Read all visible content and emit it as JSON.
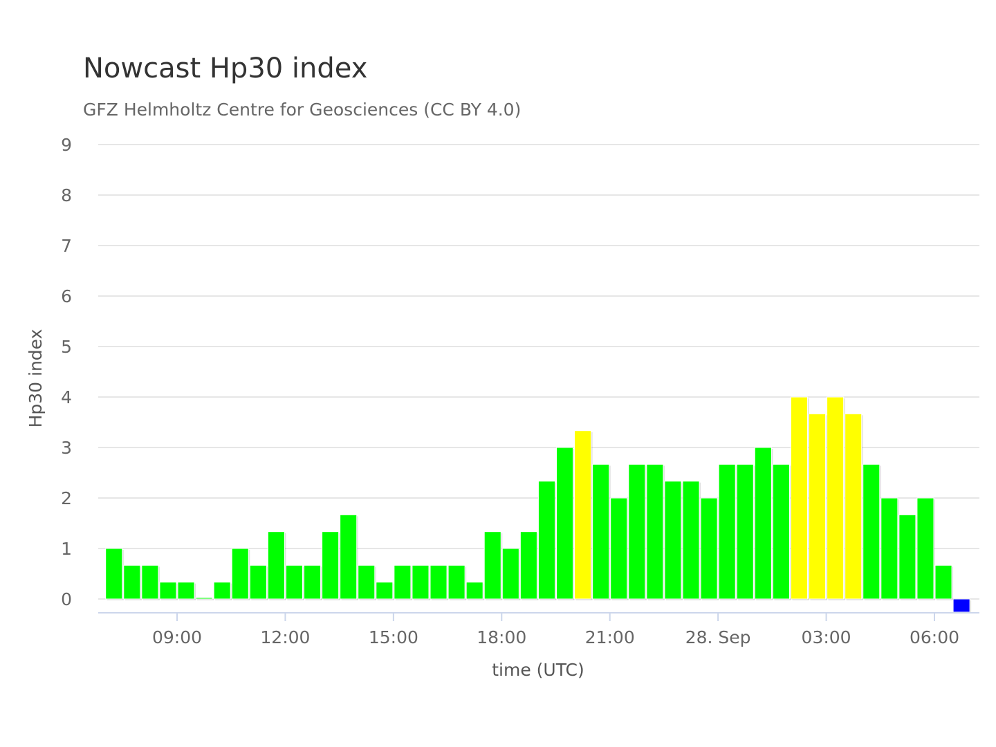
{
  "chart_data": {
    "type": "bar",
    "title": "Nowcast Hp30 index",
    "subtitle": "GFZ Helmholtz Centre for Geosciences (CC BY 4.0)",
    "xlabel": "time (UTC)",
    "ylabel": "Hp30 index",
    "ylim": [
      0,
      9
    ],
    "y_ticks": [
      0,
      1,
      2,
      3,
      4,
      5,
      6,
      7,
      8,
      9
    ],
    "x_ticks": [
      {
        "label": "09:00",
        "hour": 9
      },
      {
        "label": "12:00",
        "hour": 12
      },
      {
        "label": "15:00",
        "hour": 15
      },
      {
        "label": "18:00",
        "hour": 18
      },
      {
        "label": "21:00",
        "hour": 21
      },
      {
        "label": "28. Sep",
        "hour": 24
      },
      {
        "label": "03:00",
        "hour": 27
      },
      {
        "label": "06:00",
        "hour": 30
      }
    ],
    "x_start_hour": 7.0,
    "bar_interval_hours": 0.5,
    "grid": true,
    "legend": "none",
    "colors": {
      "quiet": "#00ff00",
      "active": "#ffff00",
      "nowcast": "#0000ff"
    },
    "values": [
      1,
      0.667,
      0.667,
      0.333,
      0.333,
      0,
      0.333,
      1,
      0.667,
      1.333,
      0.667,
      0.667,
      1.333,
      1.667,
      0.667,
      0.333,
      0.667,
      0.667,
      0.667,
      0.667,
      0.333,
      1.333,
      1,
      1.333,
      2.333,
      3,
      3.333,
      2.667,
      2,
      2.667,
      2.667,
      2.333,
      2.333,
      2,
      2.667,
      2.667,
      3,
      2.667,
      4,
      3.667,
      4,
      3.667,
      2.667,
      2,
      1.667,
      2,
      0.667,
      0
    ],
    "bar_colors": [
      "quiet",
      "quiet",
      "quiet",
      "quiet",
      "quiet",
      "quiet",
      "quiet",
      "quiet",
      "quiet",
      "quiet",
      "quiet",
      "quiet",
      "quiet",
      "quiet",
      "quiet",
      "quiet",
      "quiet",
      "quiet",
      "quiet",
      "quiet",
      "quiet",
      "quiet",
      "quiet",
      "quiet",
      "quiet",
      "quiet",
      "active",
      "quiet",
      "quiet",
      "quiet",
      "quiet",
      "quiet",
      "quiet",
      "quiet",
      "quiet",
      "quiet",
      "quiet",
      "quiet",
      "active",
      "active",
      "active",
      "active",
      "quiet",
      "quiet",
      "quiet",
      "quiet",
      "quiet",
      "nowcast"
    ]
  }
}
